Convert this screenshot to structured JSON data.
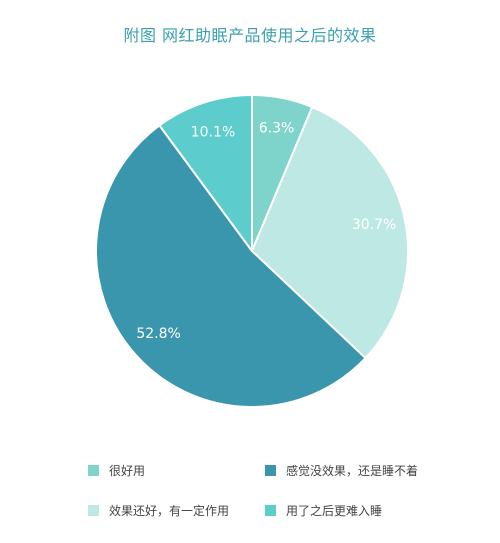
{
  "chart_data": {
    "type": "pie",
    "title": "附图 网红助眠产品使用之后的效果",
    "start_angle_deg": 0,
    "direction": "clockwise",
    "legend_position": "bottom",
    "slices": [
      {
        "name": "很好用",
        "value": 6.3,
        "label": "6.3%",
        "color": "#7ed3cb"
      },
      {
        "name": "效果还好，有一定作用",
        "value": 30.7,
        "label": "30.7%",
        "color": "#bde8e3"
      },
      {
        "name": "感觉没效果，还是睡不着",
        "value": 52.8,
        "label": "52.8%",
        "color": "#3a96ad"
      },
      {
        "name": "用了之后更难入睡",
        "value": 10.1,
        "label": "10.1%",
        "color": "#5ccccc"
      }
    ]
  },
  "colors": {
    "title": "#3aa0b0",
    "label_text": "#ffffff",
    "slice_border": "#ffffff",
    "legend_text": "#444444"
  },
  "legend": {
    "items": [
      {
        "label": "很好用",
        "color": "#7ed3cb"
      },
      {
        "label": "感觉没效果，还是睡不着",
        "color": "#3a96ad"
      },
      {
        "label": "效果还好，有一定作用",
        "color": "#bde8e3"
      },
      {
        "label": "用了之后更难入睡",
        "color": "#5ccccc"
      }
    ]
  }
}
